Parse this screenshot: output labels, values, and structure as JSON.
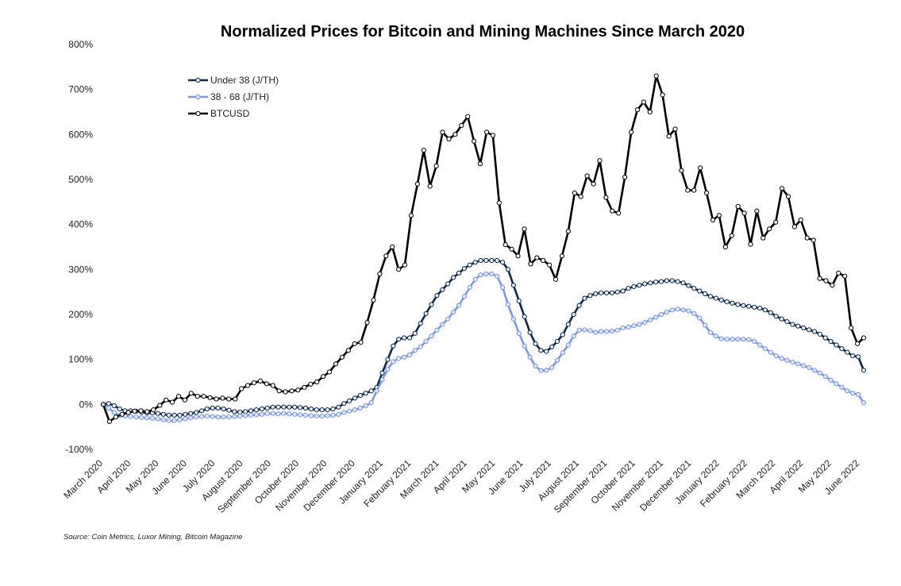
{
  "chart_data": {
    "type": "line",
    "title": "Normalized Prices for Bitcoin and Mining Machines Since March 2020",
    "source": "Source: Coin Metrics, Luxor Mining, Bitcoin Magazine",
    "xlabel": "",
    "ylabel": "",
    "ylim": [
      -100,
      800
    ],
    "y_ticks": [
      "-100%",
      "0%",
      "100%",
      "200%",
      "300%",
      "400%",
      "500%",
      "600%",
      "700%",
      "800%"
    ],
    "x_tick_labels": [
      "March 2020",
      "April 2020",
      "May 2020",
      "June 2020",
      "July 2020",
      "August 2020",
      "September 2020",
      "October 2020",
      "November 2020",
      "December 2020",
      "January 2021",
      "February 2021",
      "March 2021",
      "April 2021",
      "May 2021",
      "June 2021",
      "July 2021",
      "August 2021",
      "September 2021",
      "October 2021",
      "November 2021",
      "December 2021",
      "January 2022",
      "February 2022",
      "March 2022",
      "April 2022",
      "May 2022",
      "June 2022"
    ],
    "grid": false,
    "legend_position": "top-left",
    "x_unit": "weeks since March 2020",
    "series": [
      {
        "name": "Under 38 (J/TH)",
        "color": "#0d2849",
        "marker": "#e8f1fa",
        "values": [
          0,
          2,
          -3,
          -10,
          -14,
          -14,
          -15,
          -17,
          -19,
          -19,
          -20,
          -22,
          -24,
          -24,
          -24,
          -22,
          -20,
          -18,
          -14,
          -10,
          -8,
          -8,
          -10,
          -13,
          -16,
          -17,
          -16,
          -14,
          -12,
          -10,
          -8,
          -6,
          -6,
          -6,
          -6,
          -6,
          -7,
          -8,
          -10,
          -12,
          -12,
          -12,
          -10,
          -6,
          2,
          8,
          14,
          20,
          25,
          30,
          38,
          70,
          100,
          130,
          145,
          148,
          148,
          158,
          180,
          202,
          222,
          242,
          255,
          268,
          282,
          292,
          302,
          310,
          316,
          320,
          320,
          320,
          320,
          316,
          300,
          265,
          230,
          195,
          160,
          135,
          120,
          118,
          128,
          140,
          155,
          178,
          200,
          220,
          236,
          242,
          246,
          248,
          248,
          248,
          250,
          252,
          258,
          262,
          265,
          268,
          270,
          272,
          273,
          275,
          275,
          273,
          270,
          264,
          258,
          252,
          246,
          240,
          236,
          232,
          228,
          225,
          222,
          220,
          218,
          216,
          214,
          210,
          204,
          196,
          190,
          184,
          178,
          174,
          170,
          166,
          162,
          156,
          148,
          140,
          132,
          124,
          116,
          108,
          106,
          76
        ]
      },
      {
        "name": "38 - 68 (J/TH)",
        "color": "#7b97e5",
        "marker": "#dfe7fb",
        "values": [
          0,
          -8,
          -18,
          -25,
          -26,
          -27,
          -28,
          -29,
          -30,
          -31,
          -32,
          -34,
          -36,
          -36,
          -34,
          -32,
          -30,
          -28,
          -27,
          -26,
          -27,
          -28,
          -28,
          -28,
          -27,
          -26,
          -25,
          -24,
          -23,
          -22,
          -20,
          -20,
          -21,
          -20,
          -21,
          -22,
          -23,
          -24,
          -25,
          -26,
          -26,
          -25,
          -24,
          -22,
          -18,
          -15,
          -12,
          -8,
          -3,
          4,
          30,
          55,
          78,
          95,
          102,
          105,
          110,
          120,
          128,
          140,
          152,
          165,
          178,
          190,
          205,
          220,
          240,
          260,
          278,
          288,
          290,
          290,
          285,
          260,
          222,
          190,
          158,
          130,
          105,
          85,
          75,
          76,
          82,
          98,
          115,
          132,
          152,
          165,
          166,
          164,
          160,
          162,
          162,
          163,
          165,
          170,
          172,
          175,
          178,
          182,
          188,
          194,
          200,
          205,
          210,
          212,
          210,
          208,
          202,
          192,
          176,
          160,
          152,
          146,
          145,
          145,
          145,
          145,
          144,
          140,
          132,
          124,
          116,
          108,
          102,
          98,
          94,
          90,
          86,
          82,
          76,
          70,
          62,
          54,
          46,
          38,
          30,
          25,
          22,
          4
        ]
      },
      {
        "name": "BTCUSD",
        "color": "#000000",
        "marker": "#ffffff",
        "values": [
          0,
          -38,
          -28,
          -22,
          -18,
          -15,
          -14,
          -16,
          -12,
          -2,
          10,
          5,
          18,
          10,
          25,
          18,
          18,
          15,
          12,
          14,
          12,
          12,
          35,
          42,
          48,
          52,
          46,
          42,
          30,
          28,
          30,
          32,
          38,
          45,
          50,
          62,
          72,
          90,
          105,
          120,
          135,
          138,
          182,
          232,
          290,
          330,
          350,
          300,
          310,
          420,
          490,
          565,
          485,
          530,
          605,
          590,
          600,
          620,
          640,
          585,
          535,
          605,
          598,
          448,
          355,
          345,
          330,
          390,
          312,
          326,
          320,
          310,
          278,
          330,
          385,
          470,
          462,
          508,
          490,
          542,
          460,
          430,
          425,
          505,
          605,
          655,
          672,
          650,
          730,
          688,
          596,
          612,
          520,
          476,
          476,
          526,
          470,
          410,
          420,
          350,
          375,
          440,
          425,
          356,
          430,
          370,
          390,
          405,
          480,
          462,
          395,
          410,
          370,
          365,
          280,
          275,
          265,
          292,
          285,
          170,
          135,
          148
        ]
      }
    ]
  }
}
